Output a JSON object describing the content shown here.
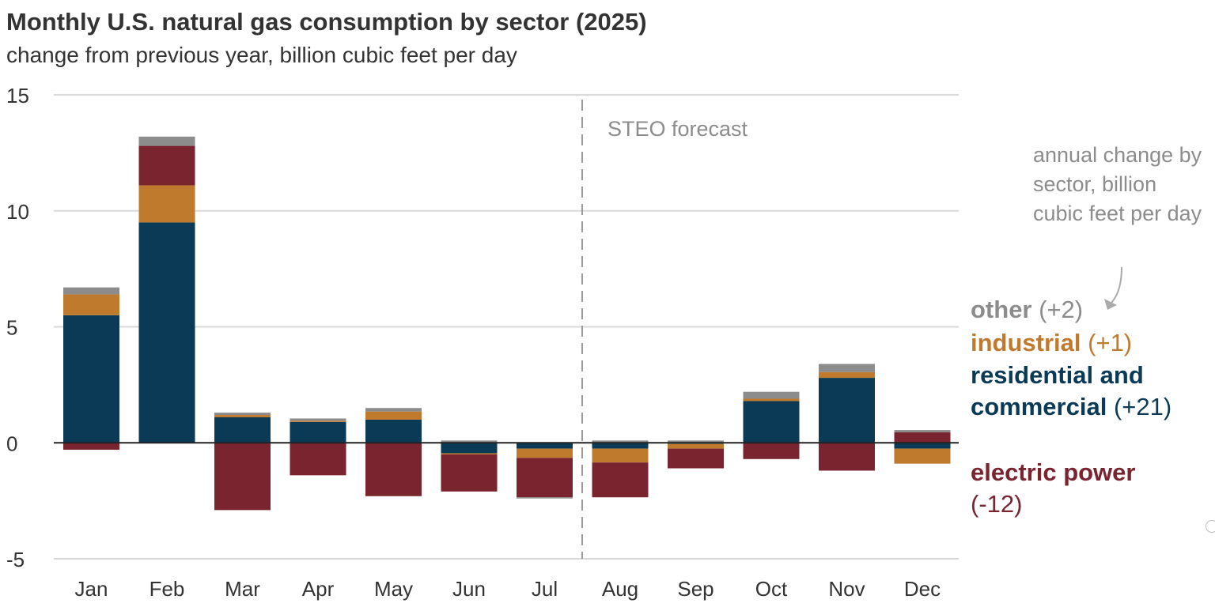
{
  "chart_data": {
    "type": "bar",
    "stacked": true,
    "title": "Monthly U.S. natural gas consumption by sector (2025)",
    "subtitle": "change from previous year, billion cubic feet per day",
    "categories": [
      "Jan",
      "Feb",
      "Mar",
      "Apr",
      "May",
      "Jun",
      "Jul",
      "Aug",
      "Sep",
      "Oct",
      "Nov",
      "Dec"
    ],
    "ylim": [
      -5,
      15
    ],
    "yticks": [
      15,
      10,
      5,
      0,
      -5
    ],
    "grid": true,
    "series": [
      {
        "key": "residential",
        "color": "#0a3a55",
        "values": [
          5.5,
          9.5,
          1.1,
          0.9,
          1.0,
          -0.45,
          -0.25,
          -0.25,
          -0.05,
          1.8,
          2.8,
          -0.25
        ]
      },
      {
        "key": "industrial",
        "color": "#c07a2e",
        "values": [
          0.9,
          1.6,
          0.1,
          0.05,
          0.35,
          -0.05,
          -0.4,
          -0.6,
          -0.2,
          0.1,
          0.25,
          -0.65
        ]
      },
      {
        "key": "electric",
        "color": "#7a2430",
        "values": [
          -0.3,
          1.7,
          -2.9,
          -1.4,
          -2.3,
          -1.6,
          -1.7,
          -1.5,
          -0.85,
          -0.7,
          -1.2,
          0.45
        ]
      },
      {
        "key": "other",
        "color": "#8c8c8c",
        "values": [
          0.3,
          0.4,
          0.1,
          0.1,
          0.15,
          0.1,
          -0.05,
          0.1,
          0.1,
          0.3,
          0.35,
          0.1
        ]
      }
    ],
    "forecast_label": "STEO forecast",
    "forecast_start_after": "Jul",
    "legend": {
      "note": "annual change by sector, billion cubic feet per day",
      "other_name": "other",
      "other_value": "(+2)",
      "industrial_name": "industrial",
      "industrial_value": "(+1)",
      "res_name_line1": "residential and",
      "res_name_line2": "commercial",
      "res_value": "(+21)",
      "elec_name": "electric power",
      "elec_value": "(-12)"
    }
  }
}
